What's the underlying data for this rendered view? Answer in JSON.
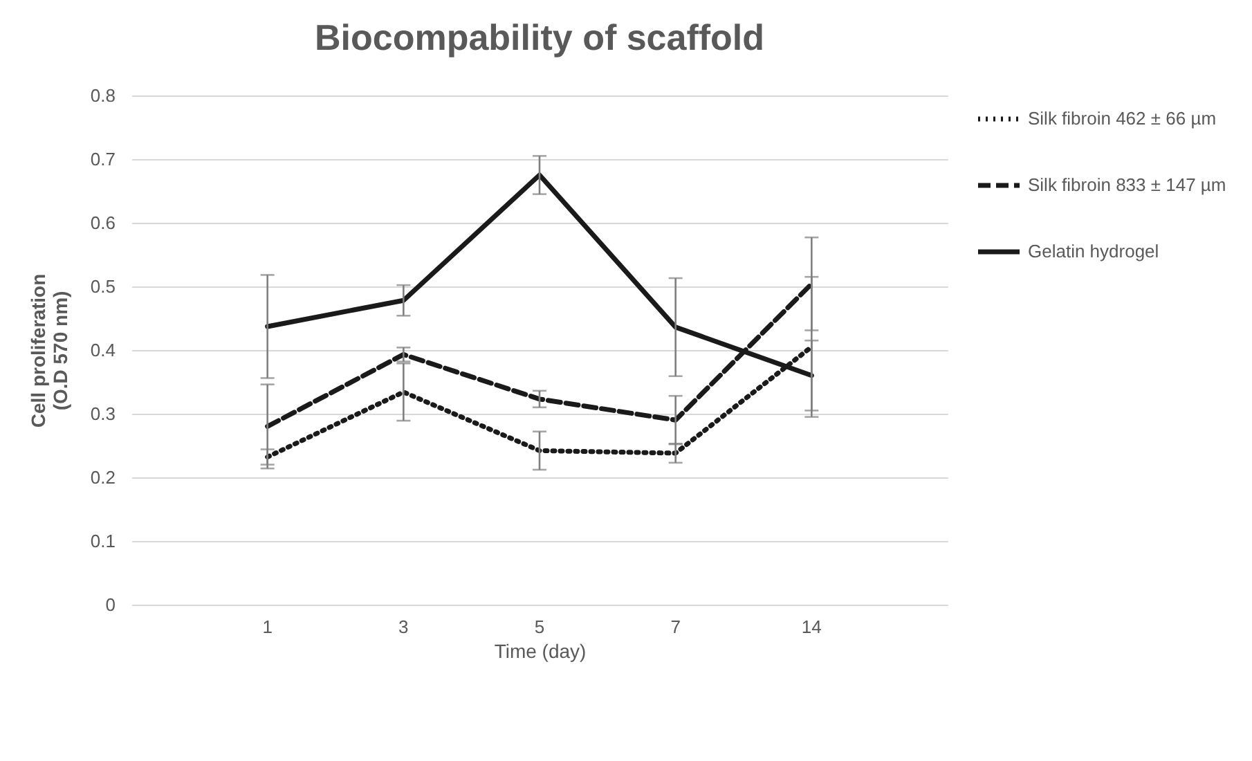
{
  "chart_data": {
    "type": "line",
    "title": "Biocompability of scaffold",
    "xlabel": "Time (day)",
    "ylabel": "Cell proliferation (O.D 570 nm)",
    "categories": [
      "1",
      "3",
      "5",
      "7",
      "14"
    ],
    "series": [
      {
        "name": "Silk fibroin 462 ± 66 µm",
        "color": "#1a1a1a",
        "line_style": "dotted",
        "values": [
          0.232,
          0.334,
          0.242,
          0.238,
          0.405
        ],
        "errors": [
          0.012,
          0.045,
          0.03,
          0.015,
          0.11
        ]
      },
      {
        "name": "Silk fibroin 833 ± 147 µm",
        "color": "#1a1a1a",
        "line_style": "dashed",
        "values": [
          0.28,
          0.393,
          0.323,
          0.29,
          0.504
        ],
        "errors": [
          0.066,
          0.011,
          0.013,
          0.038,
          0.073
        ]
      },
      {
        "name": "Gelatin hydrogel",
        "color": "#1a1a1a",
        "line_style": "solid",
        "values": [
          0.437,
          0.478,
          0.675,
          0.436,
          0.36
        ],
        "errors": [
          0.081,
          0.024,
          0.03,
          0.077,
          0.055
        ]
      }
    ],
    "ylim": [
      0,
      0.8
    ],
    "yticks": [
      {
        "value": 0,
        "label": "0"
      },
      0.1,
      0.2,
      0.3,
      0.4,
      0.5,
      0.6,
      0.7,
      0.8
    ],
    "grid": "y",
    "legend": "right",
    "marker": "none"
  }
}
